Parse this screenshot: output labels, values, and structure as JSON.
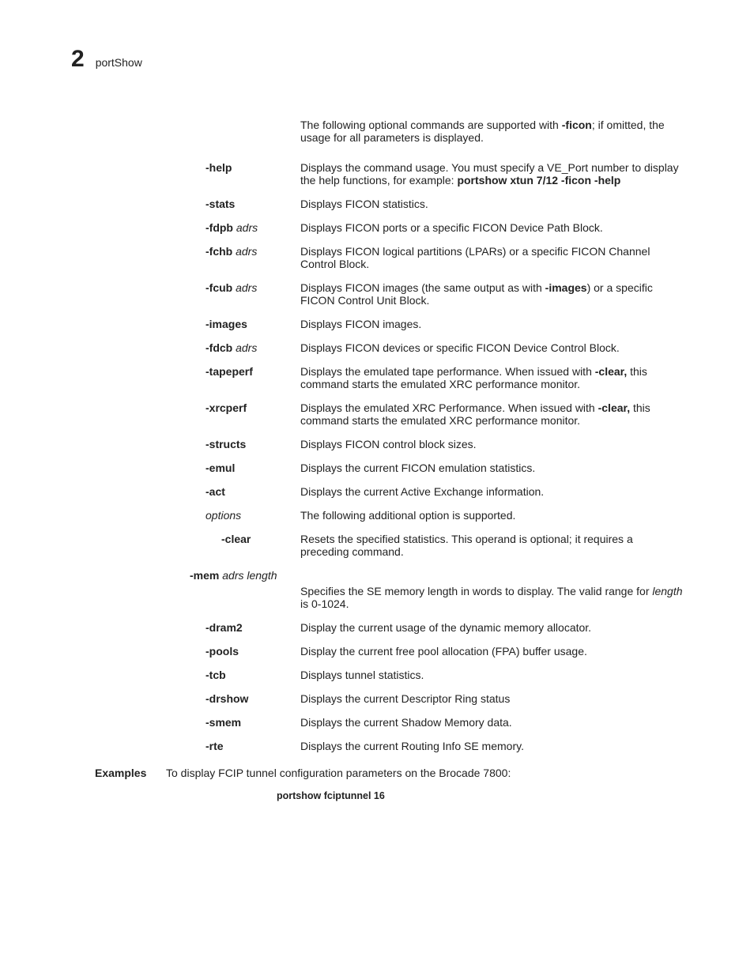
{
  "header": {
    "chapter_number": "2",
    "title": "portShow"
  },
  "intro": {
    "prefix": "The following optional commands are supported with ",
    "bold": "-ficon",
    "suffix": "; if omitted, the usage for all parameters is displayed."
  },
  "options": [
    {
      "term_bold": "-help",
      "desc_pre": "Displays the command usage. You must specify a VE_Port number to display the help functions, for example: ",
      "desc_bold": "portshow xtun 7/12 -ficon -help"
    },
    {
      "term_bold": "-stats",
      "desc": "Displays FICON statistics."
    },
    {
      "term_bold": "-fdpb",
      "term_italic": " adrs",
      "desc": "Displays FICON ports or a specific FICON Device Path Block."
    },
    {
      "term_bold": "-fchb",
      "term_italic": " adrs",
      "desc": "Displays FICON logical partitions (LPARs) or a specific FICON Channel Control Block."
    },
    {
      "term_bold": "-fcub",
      "term_italic": " adrs",
      "desc_pre": "Displays FICON images (the same output as with ",
      "desc_bold": "-images",
      "desc_post": ") or a specific FICON Control Unit Block."
    },
    {
      "term_bold": "-images",
      "desc": "Displays FICON images."
    },
    {
      "term_bold": "-fdcb",
      "term_italic": " adrs",
      "desc": "Displays FICON devices or specific FICON Device Control Block."
    },
    {
      "term_bold": "-tapeperf",
      "desc_pre": "Displays the emulated tape performance. When issued with ",
      "desc_bold": "-clear,",
      "desc_post": " this command starts the emulated XRC performance monitor."
    },
    {
      "term_bold": "-xrcperf",
      "desc_pre": "Displays the emulated XRC Performance. When issued with ",
      "desc_bold": "-clear,",
      "desc_post": " this command starts the emulated XRC performance monitor."
    },
    {
      "term_bold": "-structs",
      "desc": "Displays FICON control block sizes."
    },
    {
      "term_bold": "-emul",
      "desc": "Displays the current FICON emulation statistics."
    },
    {
      "term_bold": "-act",
      "desc": "Displays the current Active Exchange information."
    },
    {
      "term_italic_only": "options",
      "desc": "The following additional option is supported."
    }
  ],
  "sub_option": {
    "term_bold": "-clear",
    "desc": "Resets the specified statistics. This operand is optional; it requires a preceding command."
  },
  "mem": {
    "term_bold": "-mem",
    "term_italic": " adrs length",
    "desc_pre": "Specifies the SE memory length in words to display. The valid range for ",
    "desc_italic": "length",
    "desc_post": " is 0-1024."
  },
  "options2": [
    {
      "term_bold": "-dram2",
      "desc": "Display the current usage of the dynamic memory allocator."
    },
    {
      "term_bold": "-pools",
      "desc": "Display the current free pool allocation (FPA) buffer usage."
    },
    {
      "term_bold": "-tcb",
      "desc": "Displays tunnel statistics."
    },
    {
      "term_bold": "-drshow",
      "desc": "Displays the current Descriptor Ring status"
    },
    {
      "term_bold": "-smem",
      "desc": "Displays the current Shadow Memory data."
    },
    {
      "term_bold": "-rte",
      "desc": "Displays the current Routing Info SE memory."
    }
  ],
  "examples": {
    "label": "Examples",
    "text": "To display FCIP tunnel configuration parameters on the Brocade 7800:",
    "cmd": "portshow fciptunnel 16"
  }
}
